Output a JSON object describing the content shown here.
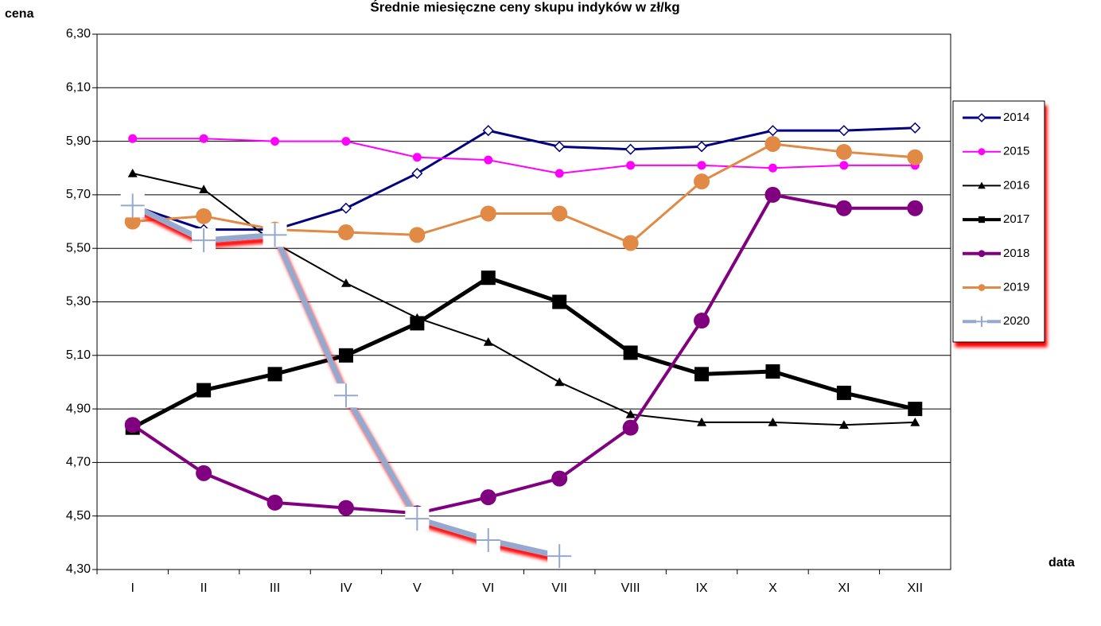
{
  "chart_data": {
    "type": "line",
    "title": "Średnie miesięczne ceny skupu indyków w zł/kg",
    "y_label": "cena",
    "x_label": "data",
    "categories": [
      "I",
      "II",
      "III",
      "IV",
      "V",
      "VI",
      "VII",
      "VIII",
      "IX",
      "X",
      "XI",
      "XII"
    ],
    "ylim": [
      4.3,
      6.3
    ],
    "yticks": [
      {
        "value": 4.3,
        "label": "4,30"
      },
      {
        "value": 4.5,
        "label": "4,50"
      },
      {
        "value": 4.7,
        "label": "4,70"
      },
      {
        "value": 4.9,
        "label": "4,90"
      },
      {
        "value": 5.1,
        "label": "5,10"
      },
      {
        "value": 5.3,
        "label": "5,30"
      },
      {
        "value": 5.5,
        "label": "5,50"
      },
      {
        "value": 5.7,
        "label": "5,70"
      },
      {
        "value": 5.9,
        "label": "5,90"
      },
      {
        "value": 6.1,
        "label": "6,10"
      },
      {
        "value": 6.3,
        "label": "6,30"
      }
    ],
    "grid": true,
    "legend": "right",
    "series": [
      {
        "name": "2014",
        "color": "#000080",
        "marker": "diamond",
        "values": [
          5.66,
          5.57,
          5.57,
          5.65,
          5.78,
          5.94,
          5.88,
          5.87,
          5.88,
          5.94,
          5.94,
          5.95
        ]
      },
      {
        "name": "2015",
        "color": "#ff00ff",
        "marker": "circle",
        "values": [
          5.91,
          5.91,
          5.9,
          5.9,
          5.84,
          5.83,
          5.78,
          5.81,
          5.81,
          5.8,
          5.81,
          5.81
        ]
      },
      {
        "name": "2016",
        "color": "#000000",
        "marker": "triangle",
        "values": [
          5.78,
          5.72,
          5.52,
          5.37,
          5.24,
          5.15,
          5.0,
          4.88,
          4.85,
          4.85,
          4.84,
          4.85
        ]
      },
      {
        "name": "2017",
        "color": "#000000",
        "marker": "square",
        "values": [
          4.83,
          4.97,
          5.03,
          5.1,
          5.22,
          5.39,
          5.3,
          5.11,
          5.03,
          5.04,
          4.96,
          4.9
        ]
      },
      {
        "name": "2018",
        "color": "#800080",
        "marker": "circle",
        "values": [
          4.84,
          4.66,
          4.55,
          4.53,
          4.51,
          4.57,
          4.64,
          4.83,
          5.23,
          5.7,
          5.65,
          5.65
        ]
      },
      {
        "name": "2019",
        "color": "#e08a45",
        "marker": "circle",
        "values": [
          5.6,
          5.62,
          5.57,
          5.56,
          5.55,
          5.63,
          5.63,
          5.52,
          5.75,
          5.89,
          5.86,
          5.84
        ]
      },
      {
        "name": "2020",
        "color": "#95a9cf",
        "marker": "plus",
        "values": [
          5.66,
          5.53,
          5.55,
          4.95,
          4.49,
          4.41,
          4.35,
          null,
          null,
          null,
          null,
          null
        ]
      }
    ]
  }
}
